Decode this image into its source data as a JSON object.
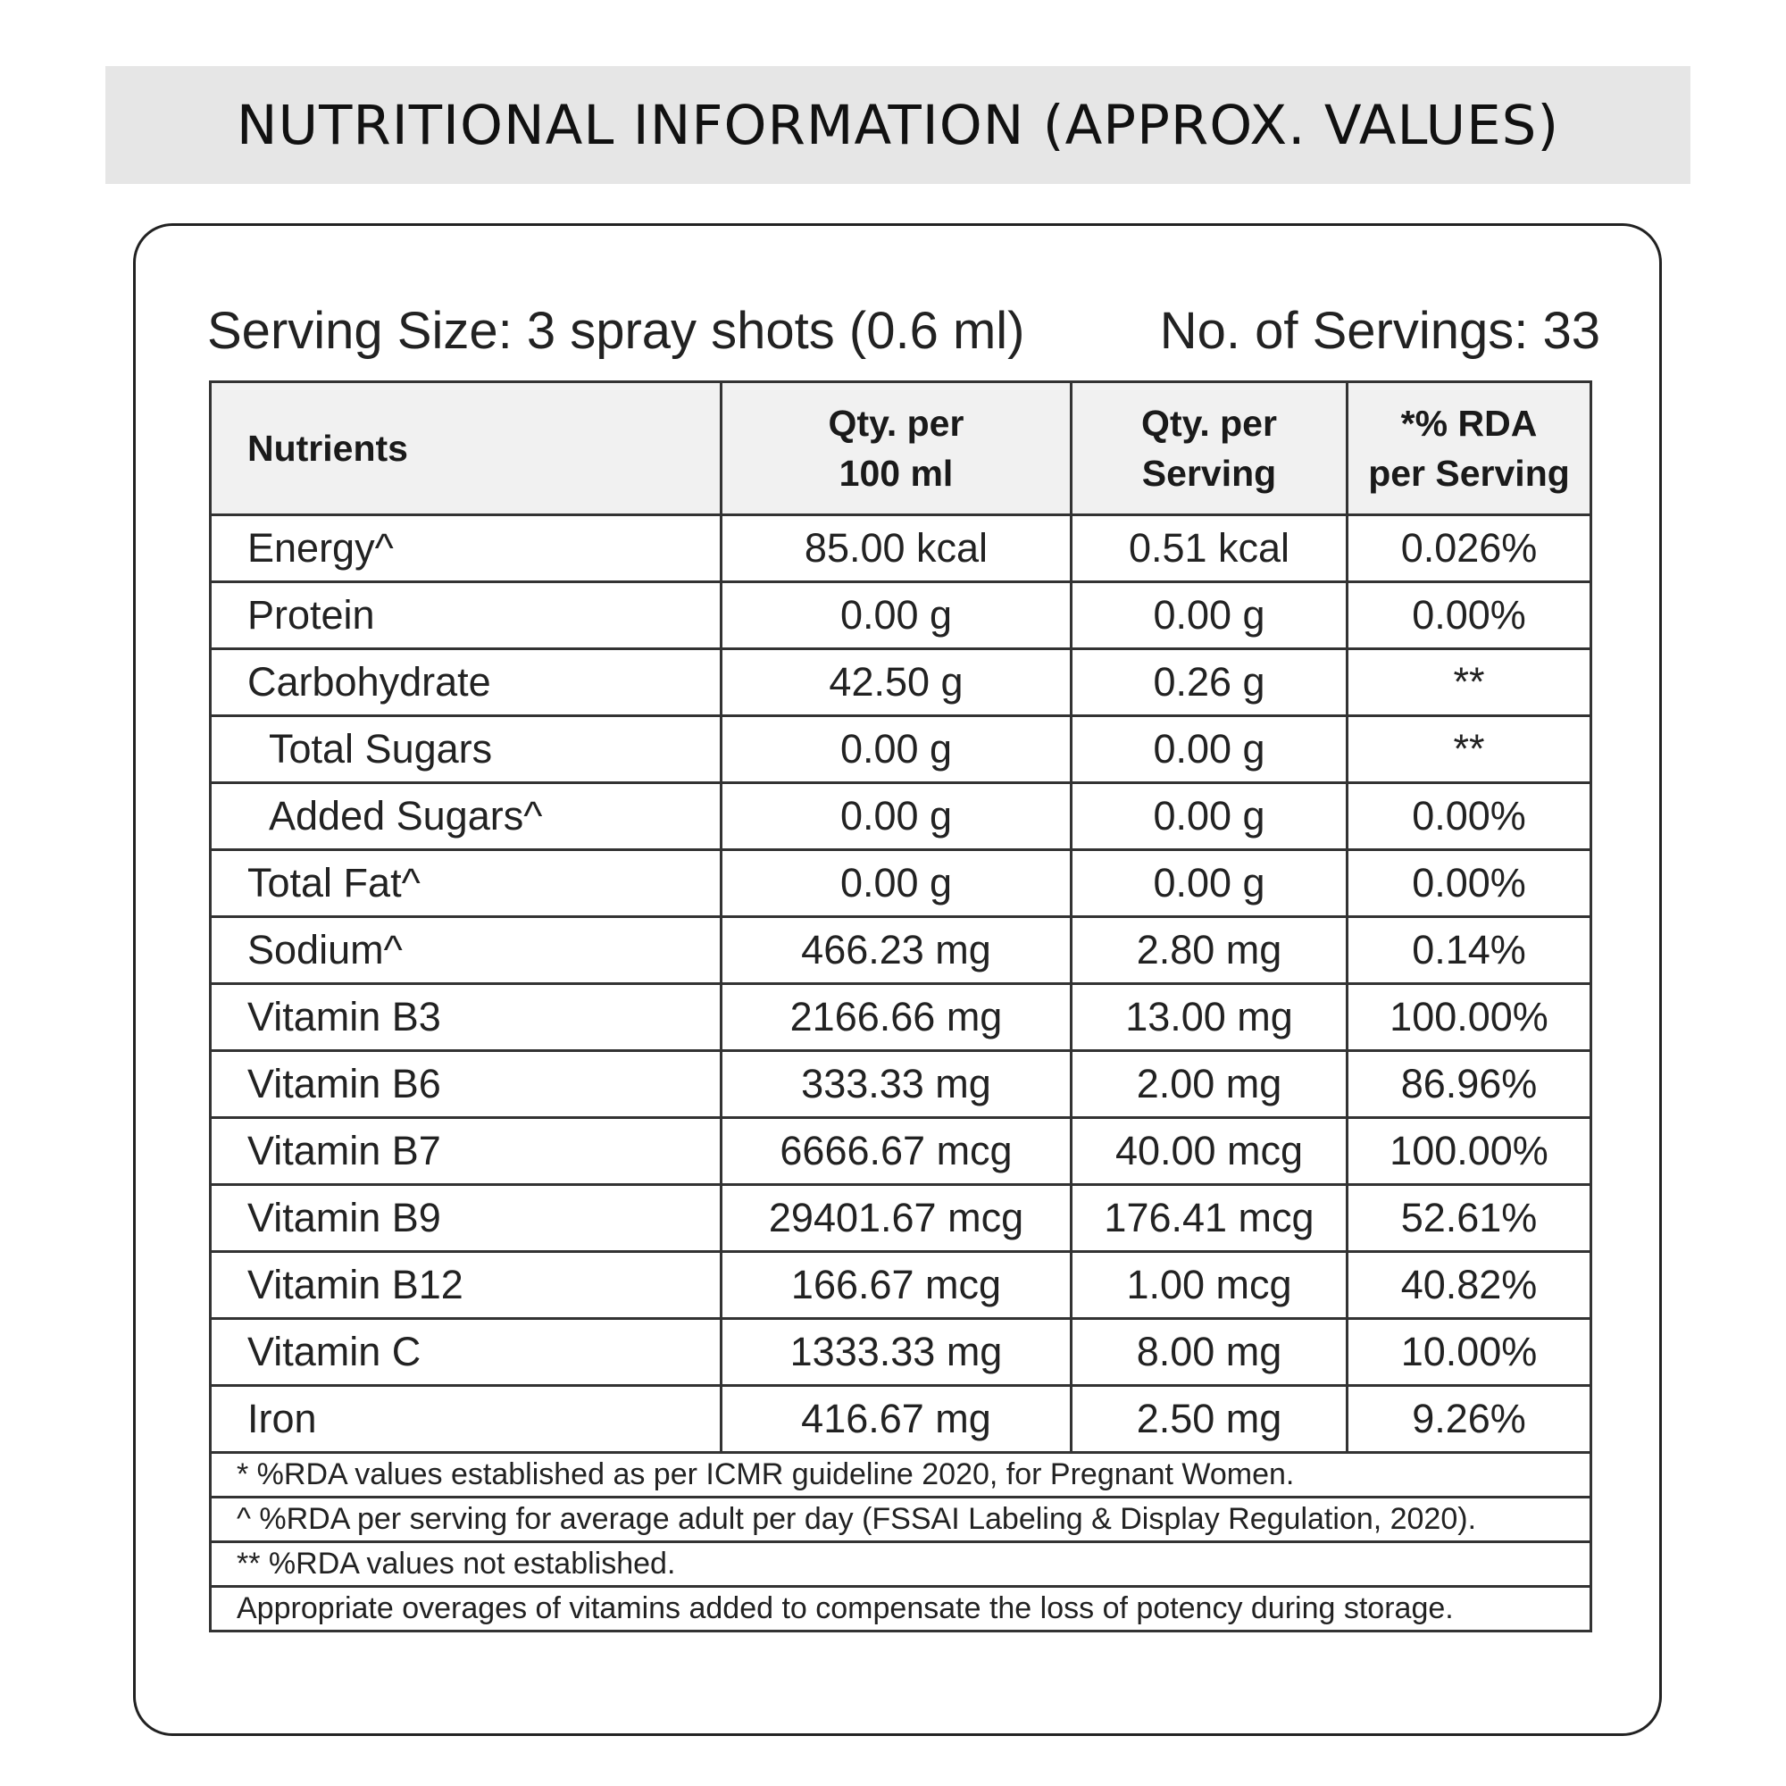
{
  "title": "NUTRITIONAL INFORMATION (APPROX. VALUES)",
  "serving": {
    "size": "Serving Size: 3 spray shots (0.6 ml)",
    "count": "No. of Servings: 33"
  },
  "table": {
    "headers": {
      "nutrients": "Nutrients",
      "per100_line1": "Qty. per",
      "per100_line2": "100 ml",
      "perServing_line1": "Qty. per",
      "perServing_line2": "Serving",
      "rda_line1": "*% RDA",
      "rda_line2": "per Serving"
    },
    "rows": [
      {
        "name": "Energy^",
        "per100": "85.00 kcal",
        "perServing": "0.51 kcal",
        "rda": "0.026%"
      },
      {
        "name": "Protein",
        "per100": "0.00 g",
        "perServing": "0.00 g",
        "rda": "0.00%"
      },
      {
        "name": "Carbohydrate",
        "per100": "42.50 g",
        "perServing": "0.26 g",
        "rda": "**"
      },
      {
        "name": "Total Sugars",
        "per100": "0.00 g",
        "perServing": "0.00 g",
        "rda": "**"
      },
      {
        "name": "Added Sugars^",
        "per100": "0.00 g",
        "perServing": "0.00 g",
        "rda": "0.00%"
      },
      {
        "name": "Total Fat^",
        "per100": "0.00 g",
        "perServing": "0.00 g",
        "rda": "0.00%"
      },
      {
        "name": "Sodium^",
        "per100": "466.23 mg",
        "perServing": "2.80 mg",
        "rda": "0.14%"
      },
      {
        "name": "Vitamin B3",
        "per100": "2166.66 mg",
        "perServing": "13.00 mg",
        "rda": "100.00%"
      },
      {
        "name": "Vitamin B6",
        "per100": "333.33 mg",
        "perServing": "2.00 mg",
        "rda": "86.96%"
      },
      {
        "name": "Vitamin B7",
        "per100": "6666.67 mcg",
        "perServing": "40.00 mcg",
        "rda": "100.00%"
      },
      {
        "name": "Vitamin B9",
        "per100": "29401.67 mcg",
        "perServing": "176.41 mcg",
        "rda": "52.61%"
      },
      {
        "name": "Vitamin B12",
        "per100": "166.67 mcg",
        "perServing": "1.00 mcg",
        "rda": "40.82%"
      },
      {
        "name": "Vitamin C",
        "per100": "1333.33 mg",
        "perServing": "8.00 mg",
        "rda": "10.00%"
      },
      {
        "name": "Iron",
        "per100": "416.67 mg",
        "perServing": "2.50 mg",
        "rda": "9.26%"
      }
    ],
    "footnotes": [
      "* %RDA values established as per ICMR guideline 2020, for Pregnant Women.",
      "^ %RDA per serving for average adult per day (FSSAI Labeling & Display Regulation, 2020).",
      "** %RDA values not established.",
      "Appropriate overages of vitamins added to compensate the loss of potency during storage."
    ]
  }
}
